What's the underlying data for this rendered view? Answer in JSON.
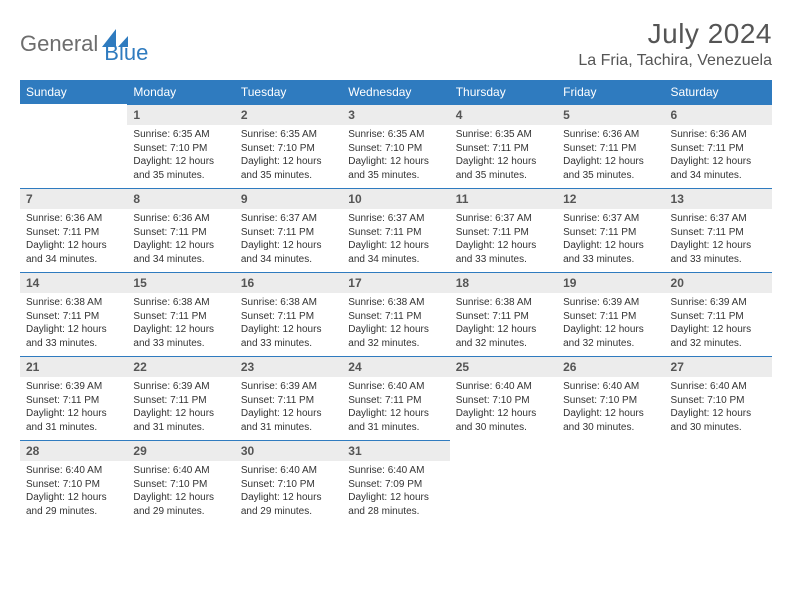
{
  "brand": {
    "part1": "General",
    "part2": "Blue"
  },
  "title": "July 2024",
  "location": "La Fria, Tachira, Venezuela",
  "colors": {
    "header_bg": "#2f7bbf",
    "header_text": "#ffffff",
    "daynum_bg": "#ececec",
    "border": "#2f7bbf",
    "title_text": "#555555",
    "body_text": "#333333",
    "background": "#ffffff"
  },
  "weekdays": [
    "Sunday",
    "Monday",
    "Tuesday",
    "Wednesday",
    "Thursday",
    "Friday",
    "Saturday"
  ],
  "weeks": [
    [
      null,
      {
        "n": "1",
        "sr": "Sunrise: 6:35 AM",
        "ss": "Sunset: 7:10 PM",
        "dl": "Daylight: 12 hours and 35 minutes."
      },
      {
        "n": "2",
        "sr": "Sunrise: 6:35 AM",
        "ss": "Sunset: 7:10 PM",
        "dl": "Daylight: 12 hours and 35 minutes."
      },
      {
        "n": "3",
        "sr": "Sunrise: 6:35 AM",
        "ss": "Sunset: 7:10 PM",
        "dl": "Daylight: 12 hours and 35 minutes."
      },
      {
        "n": "4",
        "sr": "Sunrise: 6:35 AM",
        "ss": "Sunset: 7:11 PM",
        "dl": "Daylight: 12 hours and 35 minutes."
      },
      {
        "n": "5",
        "sr": "Sunrise: 6:36 AM",
        "ss": "Sunset: 7:11 PM",
        "dl": "Daylight: 12 hours and 35 minutes."
      },
      {
        "n": "6",
        "sr": "Sunrise: 6:36 AM",
        "ss": "Sunset: 7:11 PM",
        "dl": "Daylight: 12 hours and 34 minutes."
      }
    ],
    [
      {
        "n": "7",
        "sr": "Sunrise: 6:36 AM",
        "ss": "Sunset: 7:11 PM",
        "dl": "Daylight: 12 hours and 34 minutes."
      },
      {
        "n": "8",
        "sr": "Sunrise: 6:36 AM",
        "ss": "Sunset: 7:11 PM",
        "dl": "Daylight: 12 hours and 34 minutes."
      },
      {
        "n": "9",
        "sr": "Sunrise: 6:37 AM",
        "ss": "Sunset: 7:11 PM",
        "dl": "Daylight: 12 hours and 34 minutes."
      },
      {
        "n": "10",
        "sr": "Sunrise: 6:37 AM",
        "ss": "Sunset: 7:11 PM",
        "dl": "Daylight: 12 hours and 34 minutes."
      },
      {
        "n": "11",
        "sr": "Sunrise: 6:37 AM",
        "ss": "Sunset: 7:11 PM",
        "dl": "Daylight: 12 hours and 33 minutes."
      },
      {
        "n": "12",
        "sr": "Sunrise: 6:37 AM",
        "ss": "Sunset: 7:11 PM",
        "dl": "Daylight: 12 hours and 33 minutes."
      },
      {
        "n": "13",
        "sr": "Sunrise: 6:37 AM",
        "ss": "Sunset: 7:11 PM",
        "dl": "Daylight: 12 hours and 33 minutes."
      }
    ],
    [
      {
        "n": "14",
        "sr": "Sunrise: 6:38 AM",
        "ss": "Sunset: 7:11 PM",
        "dl": "Daylight: 12 hours and 33 minutes."
      },
      {
        "n": "15",
        "sr": "Sunrise: 6:38 AM",
        "ss": "Sunset: 7:11 PM",
        "dl": "Daylight: 12 hours and 33 minutes."
      },
      {
        "n": "16",
        "sr": "Sunrise: 6:38 AM",
        "ss": "Sunset: 7:11 PM",
        "dl": "Daylight: 12 hours and 33 minutes."
      },
      {
        "n": "17",
        "sr": "Sunrise: 6:38 AM",
        "ss": "Sunset: 7:11 PM",
        "dl": "Daylight: 12 hours and 32 minutes."
      },
      {
        "n": "18",
        "sr": "Sunrise: 6:38 AM",
        "ss": "Sunset: 7:11 PM",
        "dl": "Daylight: 12 hours and 32 minutes."
      },
      {
        "n": "19",
        "sr": "Sunrise: 6:39 AM",
        "ss": "Sunset: 7:11 PM",
        "dl": "Daylight: 12 hours and 32 minutes."
      },
      {
        "n": "20",
        "sr": "Sunrise: 6:39 AM",
        "ss": "Sunset: 7:11 PM",
        "dl": "Daylight: 12 hours and 32 minutes."
      }
    ],
    [
      {
        "n": "21",
        "sr": "Sunrise: 6:39 AM",
        "ss": "Sunset: 7:11 PM",
        "dl": "Daylight: 12 hours and 31 minutes."
      },
      {
        "n": "22",
        "sr": "Sunrise: 6:39 AM",
        "ss": "Sunset: 7:11 PM",
        "dl": "Daylight: 12 hours and 31 minutes."
      },
      {
        "n": "23",
        "sr": "Sunrise: 6:39 AM",
        "ss": "Sunset: 7:11 PM",
        "dl": "Daylight: 12 hours and 31 minutes."
      },
      {
        "n": "24",
        "sr": "Sunrise: 6:40 AM",
        "ss": "Sunset: 7:11 PM",
        "dl": "Daylight: 12 hours and 31 minutes."
      },
      {
        "n": "25",
        "sr": "Sunrise: 6:40 AM",
        "ss": "Sunset: 7:10 PM",
        "dl": "Daylight: 12 hours and 30 minutes."
      },
      {
        "n": "26",
        "sr": "Sunrise: 6:40 AM",
        "ss": "Sunset: 7:10 PM",
        "dl": "Daylight: 12 hours and 30 minutes."
      },
      {
        "n": "27",
        "sr": "Sunrise: 6:40 AM",
        "ss": "Sunset: 7:10 PM",
        "dl": "Daylight: 12 hours and 30 minutes."
      }
    ],
    [
      {
        "n": "28",
        "sr": "Sunrise: 6:40 AM",
        "ss": "Sunset: 7:10 PM",
        "dl": "Daylight: 12 hours and 29 minutes."
      },
      {
        "n": "29",
        "sr": "Sunrise: 6:40 AM",
        "ss": "Sunset: 7:10 PM",
        "dl": "Daylight: 12 hours and 29 minutes."
      },
      {
        "n": "30",
        "sr": "Sunrise: 6:40 AM",
        "ss": "Sunset: 7:10 PM",
        "dl": "Daylight: 12 hours and 29 minutes."
      },
      {
        "n": "31",
        "sr": "Sunrise: 6:40 AM",
        "ss": "Sunset: 7:09 PM",
        "dl": "Daylight: 12 hours and 28 minutes."
      },
      null,
      null,
      null
    ]
  ]
}
